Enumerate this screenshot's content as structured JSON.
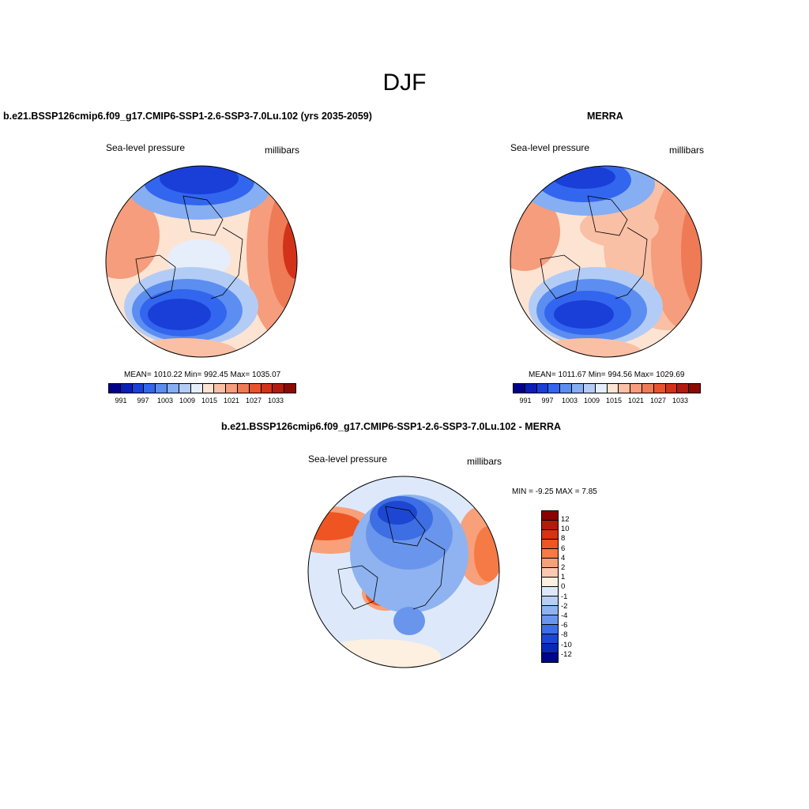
{
  "season": "DJF",
  "panel_model": {
    "title": "b.e21.BSSP126cmip6.f09_g17.CMIP6-SSP1-2.6-SSP3-7.0Lu.102 (yrs 2035-2059)",
    "variable": "Sea-level pressure",
    "units": "millibars",
    "stats": "MEAN= 1010.22  Min= 992.45  Max= 1035.07"
  },
  "panel_obs": {
    "title": "MERRA",
    "variable": "Sea-level pressure",
    "units": "millibars",
    "stats": "MEAN= 1011.67  Min= 994.56  Max= 1029.69"
  },
  "panel_diff": {
    "title": "b.e21.BSSP126cmip6.f09_g17.CMIP6-SSP1-2.6-SSP3-7.0Lu.102 - MERRA",
    "variable": "Sea-level pressure",
    "units": "millibars",
    "stats": "MIN =  -9.25 MAX =   7.85"
  },
  "abs_colorbar": {
    "colors": [
      "#00008b",
      "#0a1fb5",
      "#1a3fd8",
      "#3366ee",
      "#5b8ef0",
      "#86aef2",
      "#b3ccf5",
      "#e6eefb",
      "#fde3d2",
      "#f9c0a5",
      "#f59d7c",
      "#ef7a56",
      "#e8532e",
      "#d3321a",
      "#b01c0f",
      "#8b0a02"
    ],
    "labels": [
      "991",
      "997",
      "1003",
      "1009",
      "1015",
      "1021",
      "1027",
      "1033"
    ]
  },
  "diff_colorbar": {
    "colors": [
      "#8b0000",
      "#b51a0a",
      "#d8320f",
      "#ee5522",
      "#f57a45",
      "#f7a07a",
      "#fac9b0",
      "#fdf0e0",
      "#dde9fb",
      "#b6cff5",
      "#8eb3f0",
      "#6a95ec",
      "#3e6ee3",
      "#1d47d2",
      "#0a28b8",
      "#00068b"
    ],
    "labels": [
      "12",
      "10",
      "8",
      "6",
      "4",
      "2",
      "1",
      "0",
      "-1",
      "-2",
      "-4",
      "-6",
      "-8",
      "-10",
      "-12"
    ]
  }
}
